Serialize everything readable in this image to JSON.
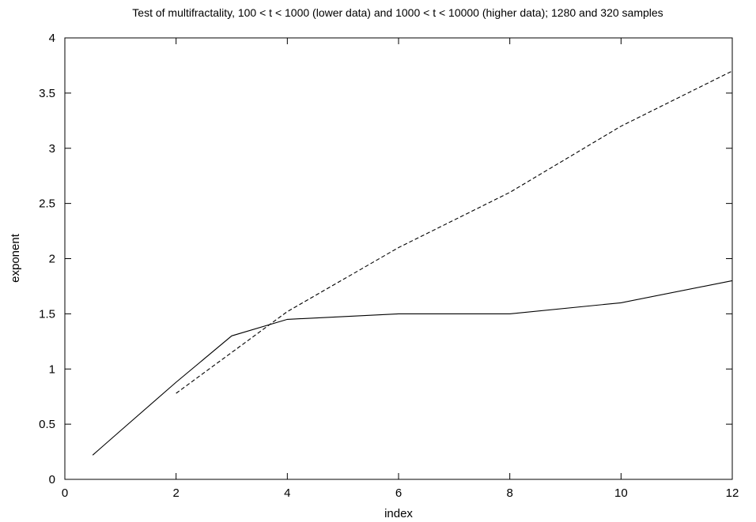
{
  "chart_data": {
    "type": "line",
    "title": "Test of multifractality, 100 < t < 1000 (lower data) and 1000 < t < 10000 (higher data); 1280 and 320 samples",
    "xlabel": "index",
    "ylabel": "exponent",
    "xlim": [
      0,
      12
    ],
    "ylim": [
      0,
      4
    ],
    "xticks": [
      0,
      2,
      4,
      6,
      8,
      10,
      12
    ],
    "yticks": [
      0,
      0.5,
      1,
      1.5,
      2,
      2.5,
      3,
      3.5,
      4
    ],
    "xtick_labels": [
      "0",
      "2",
      "4",
      "6",
      "8",
      "10",
      "12"
    ],
    "ytick_labels": [
      "0",
      "0.5",
      "1",
      "1.5",
      "2",
      "2.5",
      "3",
      "3.5",
      "4"
    ],
    "grid": false,
    "legend": "none",
    "series": [
      {
        "style": "solid",
        "color": "#000000",
        "x": [
          0.5,
          1,
          2,
          3,
          4,
          6,
          8,
          10,
          12
        ],
        "y": [
          0.22,
          0.44,
          0.88,
          1.3,
          1.45,
          1.5,
          1.5,
          1.6,
          1.8
        ]
      },
      {
        "style": "dashed",
        "color": "#000000",
        "x": [
          2,
          3,
          4,
          6,
          8,
          10,
          12
        ],
        "y": [
          0.78,
          1.15,
          1.52,
          2.1,
          2.6,
          3.2,
          3.7
        ]
      }
    ]
  }
}
